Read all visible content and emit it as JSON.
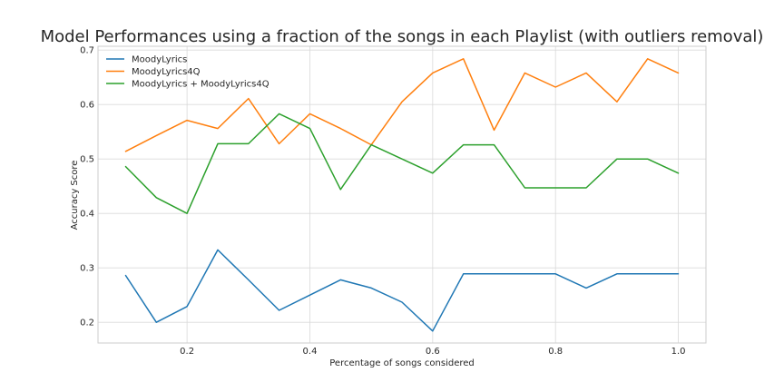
{
  "chart_data": {
    "type": "line",
    "title": "Model Performances using a fraction of the songs in each Playlist (with outliers removal)",
    "xlabel": "Percentage of songs considered",
    "ylabel": "Accuracy Score",
    "xlim": [
      0.055,
      1.045
    ],
    "ylim": [
      0.162,
      0.707
    ],
    "xticks": [
      0.2,
      0.4,
      0.6,
      0.8,
      1.0
    ],
    "xtick_labels": [
      "0.2",
      "0.4",
      "0.6",
      "0.8",
      "1.0"
    ],
    "yticks": [
      0.2,
      0.3,
      0.4,
      0.5,
      0.6,
      0.7
    ],
    "ytick_labels": [
      "0.2",
      "0.3",
      "0.4",
      "0.5",
      "0.6",
      "0.7"
    ],
    "grid": true,
    "legend_position": "top-left",
    "x": [
      0.1,
      0.15,
      0.2,
      0.25,
      0.3,
      0.35,
      0.4,
      0.45,
      0.5,
      0.55,
      0.6,
      0.65,
      0.7,
      0.75,
      0.8,
      0.85,
      0.9,
      0.95,
      1.0
    ],
    "series": [
      {
        "name": "MoodyLyrics",
        "color": "#1f77b4",
        "values": [
          0.286,
          0.2,
          0.229,
          0.333,
          0.278,
          0.222,
          0.25,
          0.278,
          0.263,
          0.237,
          0.184,
          0.289,
          0.289,
          0.289,
          0.289,
          0.263,
          0.289,
          0.289,
          0.289
        ]
      },
      {
        "name": "MoodyLyrics4Q",
        "color": "#ff7f0e",
        "values": [
          0.514,
          0.543,
          0.571,
          0.556,
          0.611,
          0.528,
          0.583,
          0.556,
          0.526,
          0.605,
          0.658,
          0.684,
          0.553,
          0.658,
          0.632,
          0.658,
          0.605,
          0.684,
          0.658
        ]
      },
      {
        "name": "MoodyLyrics + MoodyLyrics4Q",
        "color": "#2ca02c",
        "values": [
          0.486,
          0.429,
          0.4,
          0.528,
          0.528,
          0.583,
          0.556,
          0.444,
          0.526,
          0.5,
          0.474,
          0.526,
          0.526,
          0.447,
          0.447,
          0.447,
          0.5,
          0.5,
          0.474
        ]
      }
    ]
  }
}
